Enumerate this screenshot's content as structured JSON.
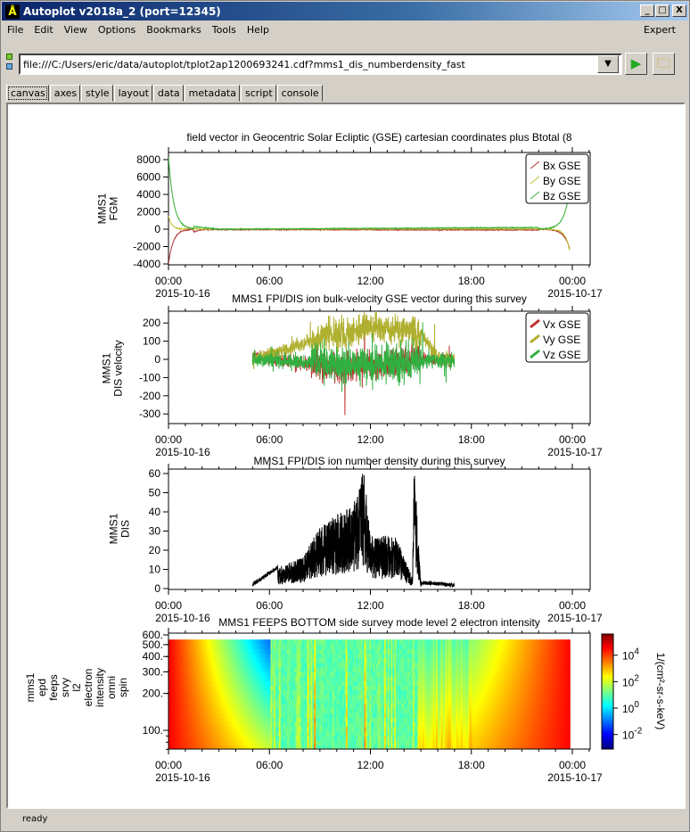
{
  "window": {
    "title": "Autoplot v2018a_2 (port=12345)",
    "min": "_",
    "max": "□",
    "close": "X"
  },
  "menu": [
    "File",
    "Edit",
    "View",
    "Options",
    "Bookmarks",
    "Tools",
    "Help"
  ],
  "menu_right": "Expert",
  "url": "file:///C:/Users/eric/data/autoplot/tplot2ap1200693241.cdf?mms1_dis_numberdensity_fast",
  "tabs": [
    "canvas",
    "axes",
    "style",
    "layout",
    "data",
    "metadata",
    "script",
    "console"
  ],
  "status": "ready",
  "colors": {
    "bx": "#b03030",
    "by": "#c0c030",
    "bz": "#30b030",
    "vx": "#c03030",
    "vy": "#b0b030",
    "vz": "#30b040"
  },
  "chart_data": [
    {
      "type": "line",
      "title": "field vector in Geocentric Solar Ecliptic (GSE) cartesian coordinates plus Btotal (8",
      "ylabel": [
        "MMS1",
        "FGM"
      ],
      "ylim": [
        -4100,
        8500
      ],
      "yticks": [
        "8000",
        "6000",
        "4000",
        "2000",
        "0",
        "-2000",
        "-4000"
      ],
      "ytick_values": [
        8000,
        6000,
        4000,
        2000,
        0,
        -2000,
        -4000
      ],
      "legend": [
        "Bx GSE",
        "By GSE",
        "Bz GSE"
      ],
      "legend_placement": "top-right",
      "series": [
        {
          "name": "Bx GSE",
          "key_points": [
            [
              0,
              -4000
            ],
            [
              0.5,
              -800
            ],
            [
              2,
              -50
            ],
            [
              23,
              -100
            ],
            [
              23.8,
              -2000
            ]
          ]
        },
        {
          "name": "By GSE",
          "key_points": [
            [
              0,
              1500
            ],
            [
              0.5,
              200
            ],
            [
              2,
              0
            ],
            [
              23,
              50
            ],
            [
              23.8,
              -2100
            ]
          ]
        },
        {
          "name": "Bz GSE",
          "key_points": [
            [
              0,
              8300
            ],
            [
              0.5,
              2500
            ],
            [
              1.5,
              300
            ],
            [
              3,
              0
            ],
            [
              22,
              200
            ],
            [
              23.8,
              4000
            ]
          ]
        }
      ]
    },
    {
      "type": "line",
      "title": "MMS1 FPI/DIS ion bulk-velocity GSE vector during this survey",
      "ylabel": [
        "MMS1",
        "DIS velocity"
      ],
      "ylim": [
        -350,
        268
      ],
      "yticks": [
        "200",
        "100",
        "0",
        "-100",
        "-200",
        "-300"
      ],
      "ytick_values": [
        200,
        100,
        0,
        -100,
        -200,
        -300
      ],
      "legend": [
        "Vx GSE",
        "Vy GSE",
        "Vz GSE"
      ],
      "legend_placement": "top-right",
      "x_range_hours": [
        5,
        17
      ],
      "series": [
        {
          "name": "Vx GSE",
          "key_points": [
            [
              5,
              20
            ],
            [
              10,
              -50
            ],
            [
              15,
              0
            ],
            [
              17,
              0
            ]
          ]
        },
        {
          "name": "Vy GSE",
          "key_points": [
            [
              5,
              0
            ],
            [
              9,
              120
            ],
            [
              12,
              180
            ],
            [
              15,
              150
            ],
            [
              16,
              10
            ],
            [
              17,
              0
            ]
          ]
        },
        {
          "name": "Vz GSE",
          "key_points": [
            [
              5,
              0
            ],
            [
              12,
              -30
            ],
            [
              17,
              0
            ]
          ]
        }
      ]
    },
    {
      "type": "line",
      "title": "MMS1 FPI/DIS ion number density during this survey",
      "ylabel": [
        "MMS1",
        "DIS"
      ],
      "ylim": [
        0,
        62
      ],
      "yticks": [
        "60",
        "50",
        "40",
        "30",
        "20",
        "10",
        "0"
      ],
      "ytick_values": [
        60,
        50,
        40,
        30,
        20,
        10,
        0
      ],
      "series": [
        {
          "name": "density",
          "key_points": [
            [
              5,
              1
            ],
            [
              6.5,
              10
            ],
            [
              8,
              15
            ],
            [
              9,
              30
            ],
            [
              11,
              40
            ],
            [
              11.6,
              57
            ],
            [
              12,
              25
            ],
            [
              13.5,
              25
            ],
            [
              14.5,
              5
            ],
            [
              14.6,
              60
            ],
            [
              15,
              2
            ],
            [
              17,
              1
            ]
          ]
        }
      ]
    },
    {
      "type": "heatmap",
      "title": "MMS1 FEEPS BOTTOM side survey mode level 2 electron intensity",
      "ylabel": [
        "mms1",
        "epd",
        "feeps",
        "srvy",
        "l2",
        "electron",
        "intensity",
        "omni",
        "spin"
      ],
      "ylim": [
        70,
        620
      ],
      "yscale": "log",
      "yticks": [
        "600.",
        "500.",
        "400.",
        "300.",
        "200.",
        "100."
      ],
      "ytick_values": [
        600,
        500,
        400,
        300,
        200,
        100
      ],
      "zlabel": "1/(cm²-sr-s-keV)",
      "zticks": [
        {
          "base": "10",
          "exp": "4",
          "value": 4
        },
        {
          "base": "10",
          "exp": "2",
          "value": 2
        },
        {
          "base": "10",
          "exp": "0",
          "value": 0
        },
        {
          "base": "10",
          "exp": "-2",
          "value": -2
        }
      ],
      "zlim_log": [
        -3.1,
        5.6
      ]
    }
  ],
  "xaxis": {
    "ticks": [
      "00:00",
      "06:00",
      "12:00",
      "18:00",
      "00:00"
    ],
    "tick_hours": [
      0,
      6,
      12,
      18,
      24
    ],
    "dates": [
      "2015-10-16",
      "2015-10-17"
    ]
  }
}
